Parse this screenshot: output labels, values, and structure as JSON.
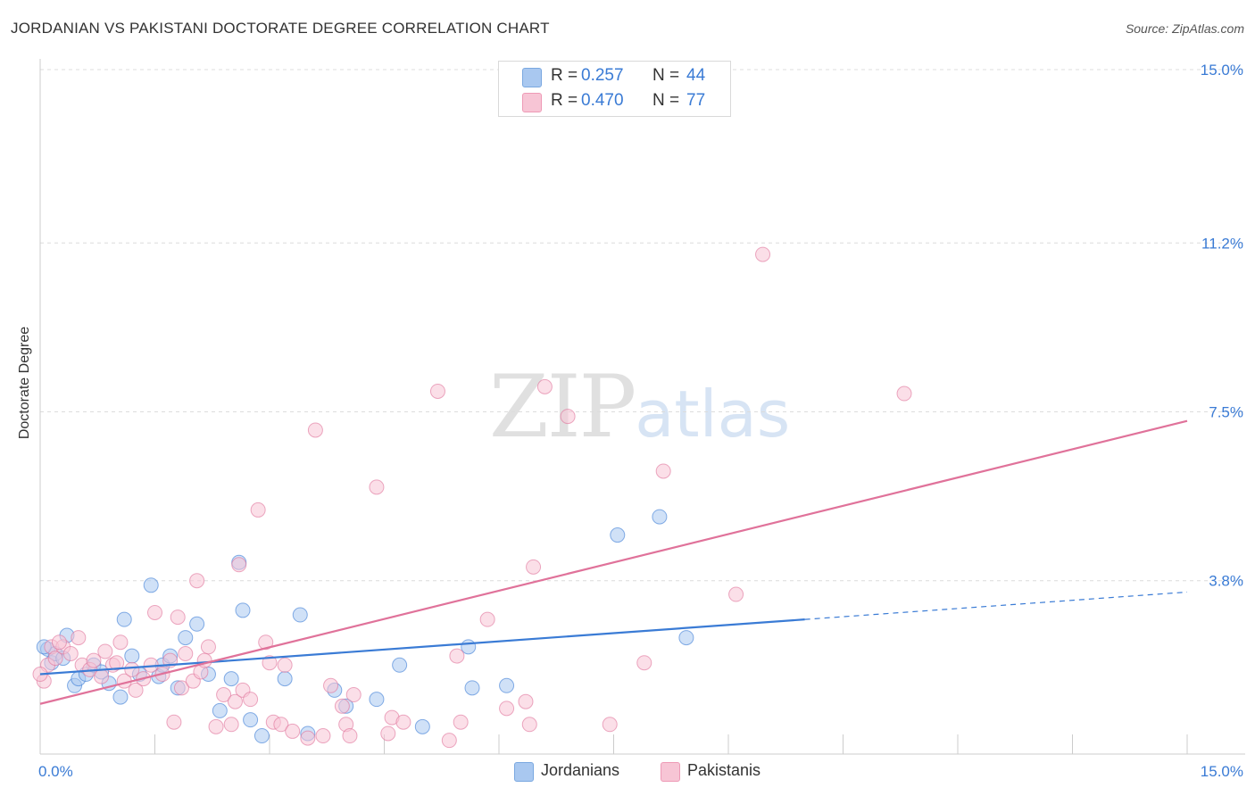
{
  "header": {
    "title": "JORDANIAN VS PAKISTANI DOCTORATE DEGREE CORRELATION CHART",
    "source": "Source: ZipAtlas.com"
  },
  "watermark": {
    "zip": "ZIP",
    "atlas": "atlas"
  },
  "legend_top": {
    "rows": [
      {
        "r_label": "R =",
        "r_value": "0.257",
        "n_label": "N =",
        "n_value": "44",
        "color": "#a9c8f0",
        "border": "#7aa8e0"
      },
      {
        "r_label": "R =",
        "r_value": "0.470",
        "n_label": "N =",
        "n_value": "77",
        "color": "#f7c5d5",
        "border": "#ee9ab6"
      }
    ]
  },
  "legend_bottom": {
    "items": [
      {
        "label": "Jordanians",
        "color": "#a9c8f0",
        "border": "#7aa8e0"
      },
      {
        "label": "Pakistanis",
        "color": "#f7c5d5",
        "border": "#ee9ab6"
      }
    ]
  },
  "chart_data": {
    "type": "scatter",
    "title": "JORDANIAN VS PAKISTANI DOCTORATE DEGREE CORRELATION CHART",
    "xlabel": "",
    "ylabel": "Doctorate Degree",
    "xlim": [
      0,
      15
    ],
    "ylim": [
      0,
      15
    ],
    "x_tick_labels": [
      "0.0%",
      "15.0%"
    ],
    "y_ticks": [
      3.8,
      7.5,
      11.2,
      15.0
    ],
    "y_tick_labels": [
      "3.8%",
      "7.5%",
      "11.2%",
      "15.0%"
    ],
    "grid": true,
    "legend_position": "top-center",
    "series": [
      {
        "name": "Jordanians",
        "color": "#3a7bd5",
        "fill": "#a9c8f0",
        "r": 0.257,
        "n": 44,
        "trend": {
          "x0": 0,
          "y0": 1.75,
          "x1": 10.0,
          "y1": 2.95,
          "dash_to_x": 15.0,
          "dash_to_y": 3.55
        },
        "points": [
          [
            0.1,
            2.3
          ],
          [
            0.15,
            2.0
          ],
          [
            0.2,
            2.2
          ],
          [
            0.3,
            2.1
          ],
          [
            0.35,
            2.6
          ],
          [
            0.45,
            1.5
          ],
          [
            0.5,
            1.65
          ],
          [
            0.6,
            1.75
          ],
          [
            0.7,
            1.95
          ],
          [
            0.8,
            1.8
          ],
          [
            0.9,
            1.55
          ],
          [
            1.1,
            2.95
          ],
          [
            1.2,
            2.15
          ],
          [
            1.3,
            1.75
          ],
          [
            1.45,
            3.7
          ],
          [
            1.55,
            1.7
          ],
          [
            1.6,
            1.95
          ],
          [
            1.7,
            2.15
          ],
          [
            1.8,
            1.45
          ],
          [
            1.9,
            2.55
          ],
          [
            2.05,
            2.85
          ],
          [
            2.2,
            1.75
          ],
          [
            2.35,
            0.95
          ],
          [
            2.5,
            1.65
          ],
          [
            2.6,
            4.2
          ],
          [
            2.65,
            3.15
          ],
          [
            2.75,
            0.75
          ],
          [
            2.9,
            0.4
          ],
          [
            3.2,
            1.65
          ],
          [
            3.4,
            3.05
          ],
          [
            3.5,
            0.45
          ],
          [
            3.85,
            1.4
          ],
          [
            4.0,
            1.05
          ],
          [
            4.4,
            1.2
          ],
          [
            4.7,
            1.95
          ],
          [
            5.0,
            0.6
          ],
          [
            5.6,
            2.35
          ],
          [
            5.65,
            1.45
          ],
          [
            6.1,
            1.5
          ],
          [
            7.55,
            4.8
          ],
          [
            8.1,
            5.2
          ],
          [
            8.45,
            2.55
          ],
          [
            0.05,
            2.35
          ],
          [
            1.05,
            1.25
          ]
        ]
      },
      {
        "name": "Pakistanis",
        "color": "#e0729a",
        "fill": "#f7c5d5",
        "r": 0.47,
        "n": 77,
        "trend": {
          "x0": 0,
          "y0": 1.1,
          "x1": 15.0,
          "y1": 7.3
        },
        "points": [
          [
            0.05,
            1.6
          ],
          [
            0.1,
            1.95
          ],
          [
            0.15,
            2.35
          ],
          [
            0.2,
            2.1
          ],
          [
            0.3,
            2.35
          ],
          [
            0.4,
            2.2
          ],
          [
            0.5,
            2.55
          ],
          [
            0.55,
            1.95
          ],
          [
            0.65,
            1.85
          ],
          [
            0.7,
            2.05
          ],
          [
            0.8,
            1.7
          ],
          [
            0.85,
            2.25
          ],
          [
            0.95,
            1.95
          ],
          [
            1.05,
            2.45
          ],
          [
            1.1,
            1.6
          ],
          [
            1.2,
            1.85
          ],
          [
            1.25,
            1.4
          ],
          [
            1.35,
            1.65
          ],
          [
            1.45,
            1.95
          ],
          [
            1.5,
            3.1
          ],
          [
            1.6,
            1.75
          ],
          [
            1.7,
            2.05
          ],
          [
            1.75,
            0.7
          ],
          [
            1.8,
            3.0
          ],
          [
            1.85,
            1.45
          ],
          [
            1.9,
            2.2
          ],
          [
            2.0,
            1.6
          ],
          [
            2.05,
            3.8
          ],
          [
            2.1,
            1.8
          ],
          [
            2.2,
            2.35
          ],
          [
            2.3,
            0.6
          ],
          [
            2.4,
            1.3
          ],
          [
            2.5,
            0.65
          ],
          [
            2.55,
            1.15
          ],
          [
            2.6,
            4.15
          ],
          [
            2.65,
            1.4
          ],
          [
            2.75,
            1.2
          ],
          [
            2.85,
            5.35
          ],
          [
            2.95,
            2.45
          ],
          [
            3.0,
            2.0
          ],
          [
            3.05,
            0.7
          ],
          [
            3.15,
            0.65
          ],
          [
            3.2,
            1.95
          ],
          [
            3.3,
            0.5
          ],
          [
            3.5,
            0.35
          ],
          [
            3.6,
            7.1
          ],
          [
            3.7,
            0.4
          ],
          [
            3.8,
            1.5
          ],
          [
            3.95,
            1.05
          ],
          [
            4.0,
            0.65
          ],
          [
            4.05,
            0.4
          ],
          [
            4.1,
            1.3
          ],
          [
            4.4,
            5.85
          ],
          [
            4.55,
            0.45
          ],
          [
            4.6,
            0.8
          ],
          [
            4.75,
            0.7
          ],
          [
            5.2,
            7.95
          ],
          [
            5.35,
            0.3
          ],
          [
            5.45,
            2.15
          ],
          [
            5.5,
            0.7
          ],
          [
            5.85,
            2.95
          ],
          [
            6.1,
            1.0
          ],
          [
            6.35,
            1.15
          ],
          [
            6.4,
            0.65
          ],
          [
            6.45,
            4.1
          ],
          [
            6.6,
            8.05
          ],
          [
            6.9,
            7.4
          ],
          [
            7.45,
            0.65
          ],
          [
            7.9,
            2.0
          ],
          [
            8.15,
            6.2
          ],
          [
            9.1,
            3.5
          ],
          [
            9.45,
            10.95
          ],
          [
            11.3,
            7.9
          ],
          [
            0.0,
            1.75
          ],
          [
            0.25,
            2.45
          ],
          [
            1.0,
            2.0
          ],
          [
            2.15,
            2.05
          ]
        ]
      }
    ]
  }
}
